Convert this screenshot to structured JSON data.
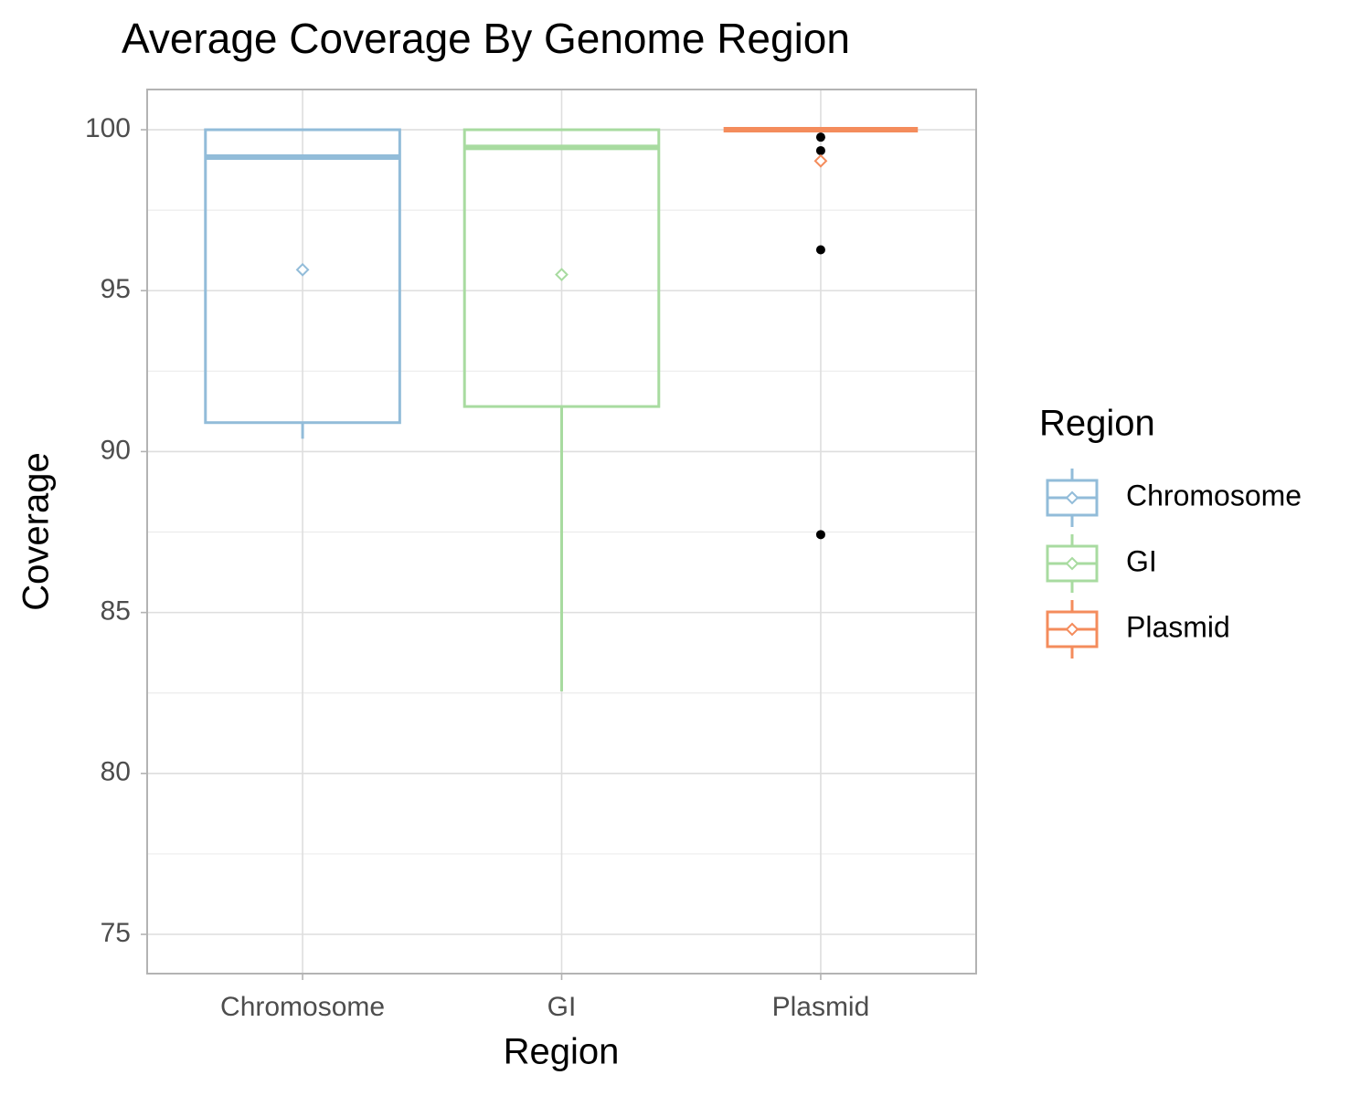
{
  "chart_data": {
    "type": "box",
    "title": "Average Coverage By Genome Region",
    "x_label": "Region",
    "y_label": "Coverage",
    "legend_title": "Region",
    "legend_position": "right",
    "categories": [
      "Chromosome",
      "GI",
      "Plasmid"
    ],
    "series": [
      {
        "name": "Chromosome",
        "color": "#92bcd9",
        "whisker_low": 90.4,
        "q1": 90.9,
        "median": 99.15,
        "q3": 100,
        "whisker_high": 100,
        "mean": 95.65,
        "outliers": []
      },
      {
        "name": "GI",
        "color": "#a8dba0",
        "whisker_low": 82.55,
        "q1": 91.4,
        "median": 99.45,
        "q3": 100,
        "whisker_high": 100,
        "mean": 95.5,
        "outliers": []
      },
      {
        "name": "Plasmid",
        "color": "#f48c5c",
        "whisker_low": 100,
        "q1": 100,
        "median": 100,
        "q3": 100,
        "whisker_high": 100,
        "mean": 99.03,
        "outliers": [
          99.77,
          99.35,
          96.27,
          87.42
        ]
      }
    ],
    "outlier_color": "#000000",
    "ylim": [
      73.78,
      101.25
    ],
    "yticks": [
      75,
      80,
      85,
      90,
      95,
      100
    ],
    "y_minor_ticks": [
      77.5,
      82.5,
      87.5,
      92.5,
      97.5
    ],
    "grid": true
  }
}
